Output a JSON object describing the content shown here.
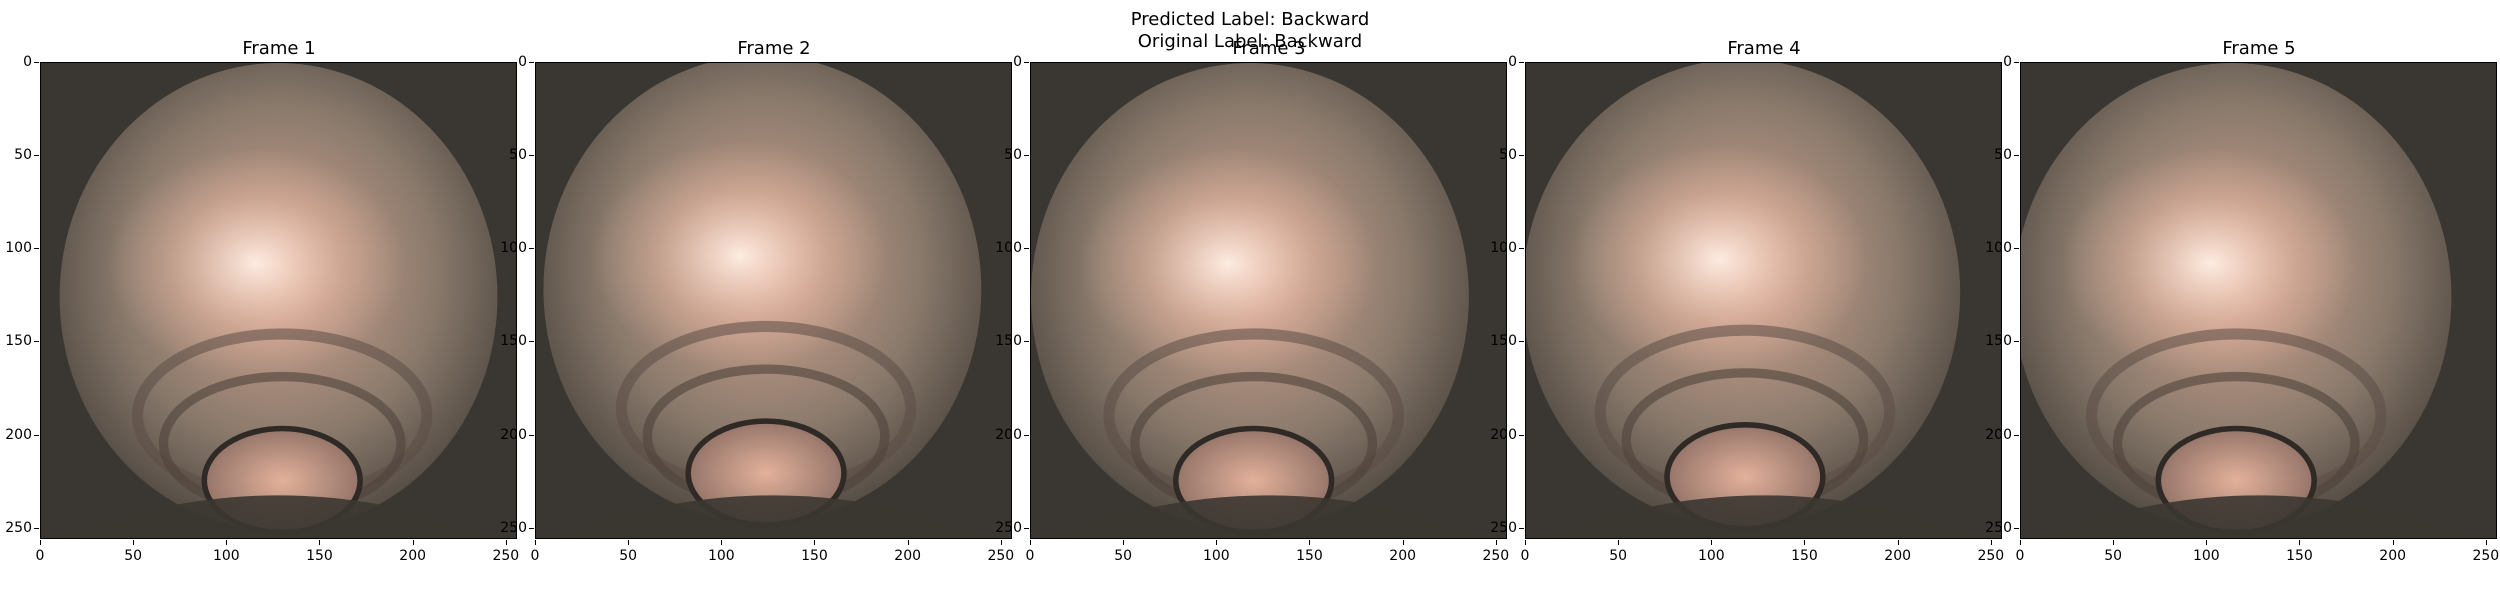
{
  "figure": {
    "suptitle_line1": "Predicted Label: Backward",
    "suptitle_line2": "Original Label: Backward"
  },
  "panels": [
    {
      "title": "Frame 1"
    },
    {
      "title": "Frame 2"
    },
    {
      "title": "Frame 3"
    },
    {
      "title": "Frame 4"
    },
    {
      "title": "Frame 5"
    }
  ],
  "axes": {
    "x_ticks": [
      "0",
      "50",
      "100",
      "150",
      "200",
      "250"
    ],
    "y_ticks": [
      "0",
      "50",
      "100",
      "150",
      "200",
      "250"
    ]
  },
  "colors": {
    "tissue_dark": "#3a3631",
    "tissue_mid": "#8a7a6c",
    "tissue_pink": "#d7a692",
    "highlight": "#fff0e6"
  }
}
